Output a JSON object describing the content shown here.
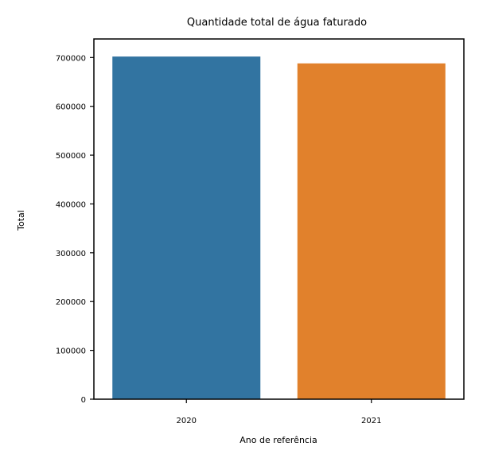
{
  "chart_data": {
    "type": "bar",
    "title": "Quantidade total de água faturado",
    "xlabel": "Ano de referência",
    "ylabel": "Total",
    "categories": [
      "2020",
      "2021"
    ],
    "values": [
      702000,
      688000
    ],
    "colors": [
      "#3274a1",
      "#e1812c"
    ],
    "ylim": [
      0,
      738000
    ],
    "yticks": [
      0,
      100000,
      200000,
      300000,
      400000,
      500000,
      600000,
      700000
    ],
    "ytick_labels": [
      "0",
      "100000",
      "200000",
      "300000",
      "400000",
      "500000",
      "600000",
      "700000"
    ],
    "grid": false,
    "legend": "none"
  }
}
